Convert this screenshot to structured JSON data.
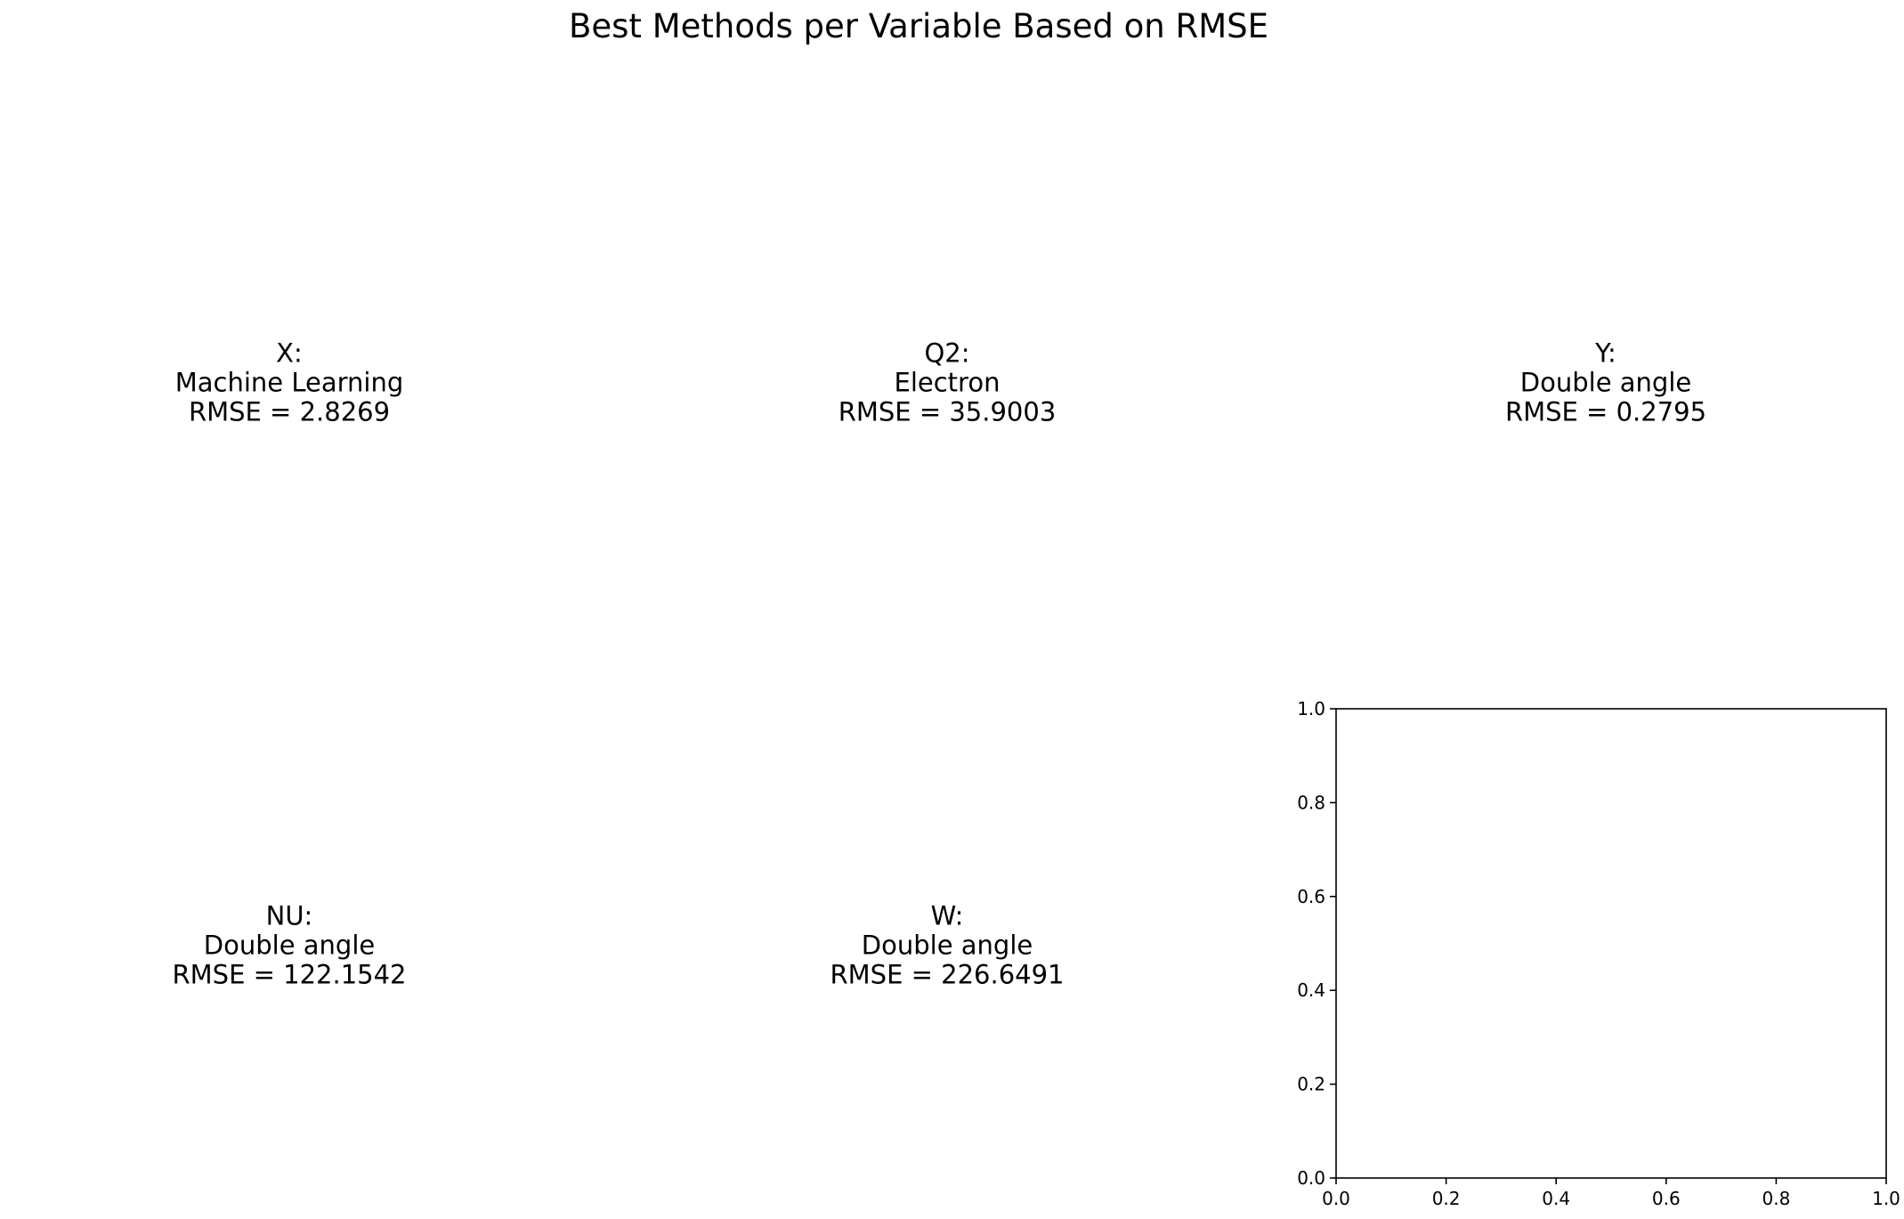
{
  "figure": {
    "title": "Best Methods per Variable Based on RMSE"
  },
  "panels": [
    {
      "variable": "X:",
      "method": "Machine Learning",
      "rmse_text": "RMSE = 2.8269"
    },
    {
      "variable": "Q2:",
      "method": "Electron",
      "rmse_text": "RMSE = 35.9003"
    },
    {
      "variable": "Y:",
      "method": "Double angle",
      "rmse_text": "RMSE = 0.2795"
    },
    {
      "variable": "NU:",
      "method": "Double angle",
      "rmse_text": "RMSE = 122.1542"
    },
    {
      "variable": "W:",
      "method": "Double angle",
      "rmse_text": "RMSE = 226.6491"
    }
  ],
  "chart_data": {
    "type": "table",
    "title": "Best Methods per Variable Based on RMSE",
    "rows": [
      {
        "variable": "X",
        "best_method": "Machine Learning",
        "rmse": 2.8269
      },
      {
        "variable": "Q2",
        "best_method": "Electron",
        "rmse": 35.9003
      },
      {
        "variable": "Y",
        "best_method": "Double angle",
        "rmse": 0.2795
      },
      {
        "variable": "NU",
        "best_method": "Double angle",
        "rmse": 122.1542
      },
      {
        "variable": "W",
        "best_method": "Double angle",
        "rmse": 226.6491
      }
    ],
    "empty_axes": {
      "xlim": [
        0.0,
        1.0
      ],
      "ylim": [
        0.0,
        1.0
      ],
      "xticks": [
        "0.0",
        "0.2",
        "0.4",
        "0.6",
        "0.8",
        "1.0"
      ],
      "yticks": [
        "0.0",
        "0.2",
        "0.4",
        "0.6",
        "0.8",
        "1.0"
      ],
      "grid": false
    }
  }
}
